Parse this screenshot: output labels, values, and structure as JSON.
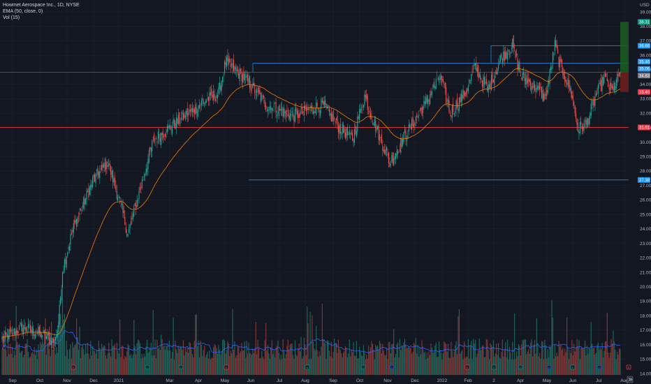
{
  "header": {
    "title": "Howmet Aerospace Inc., 1D, NYSE",
    "ema_label": "EMA (50, close, 0)",
    "vol_label": "Vol (15)"
  },
  "axis": {
    "currency": "USD"
  },
  "colors": {
    "background": "#131722",
    "grid": "#1e222d",
    "up": "#26a69a",
    "down": "#ef5350",
    "ema": "#f57c00",
    "vol_ma": "#2962ff",
    "hline_blue": "#2196f3",
    "hline_red": "#f23645",
    "tag_blue": "#2196f3",
    "tag_red": "#f23645",
    "tag_green": "#089981",
    "tag_gray": "#787b86"
  },
  "chart_data": {
    "type": "candlestick",
    "symbol": "Howmet Aerospace Inc.",
    "interval": "1D",
    "exchange": "NYSE",
    "grid": true,
    "ylim": [
      13.8,
      39.8
    ],
    "y_ticks": [
      14.0,
      15.0,
      16.0,
      17.0,
      18.0,
      19.0,
      20.0,
      21.0,
      22.0,
      23.0,
      24.0,
      25.0,
      26.0,
      27.0,
      28.0,
      29.0,
      30.0,
      31.0,
      32.0,
      33.0,
      34.0,
      35.0,
      36.0,
      37.0,
      38.0,
      39.0
    ],
    "x_ticks": [
      "Sep",
      "Oct",
      "Nov",
      "Dec",
      "2021",
      "Mar",
      "Apr",
      "May",
      "Jun",
      "Jul",
      "Aug",
      "Sep",
      "Oct",
      "Nov",
      "Dec",
      "2022",
      "Feb",
      "2",
      "Apr",
      "May",
      "Jun",
      "Jul",
      "Aug"
    ],
    "anchors": [
      [
        0,
        16.4
      ],
      [
        20,
        17.2
      ],
      [
        40,
        16.7
      ],
      [
        52,
        16.2
      ],
      [
        56,
        17.4
      ],
      [
        60,
        21.2
      ],
      [
        70,
        23.9
      ],
      [
        90,
        27.3
      ],
      [
        105,
        28.6
      ],
      [
        118,
        25.6
      ],
      [
        125,
        23.6
      ],
      [
        150,
        30.1
      ],
      [
        200,
        32.8
      ],
      [
        215,
        33.4
      ],
      [
        222,
        35.5
      ],
      [
        240,
        34.5
      ],
      [
        262,
        32.6
      ],
      [
        290,
        31.8
      ],
      [
        318,
        32.6
      ],
      [
        335,
        31.0
      ],
      [
        348,
        30.2
      ],
      [
        360,
        33.2
      ],
      [
        372,
        30.9
      ],
      [
        385,
        28.6
      ],
      [
        400,
        30.4
      ],
      [
        420,
        32.6
      ],
      [
        435,
        34.6
      ],
      [
        445,
        32.0
      ],
      [
        460,
        33.4
      ],
      [
        470,
        35.2
      ],
      [
        482,
        33.6
      ],
      [
        495,
        35.7
      ],
      [
        507,
        36.7
      ],
      [
        515,
        34.6
      ],
      [
        528,
        33.9
      ],
      [
        540,
        33.1
      ],
      [
        549,
        36.7
      ],
      [
        555,
        35.1
      ],
      [
        565,
        33.6
      ],
      [
        572,
        30.9
      ],
      [
        580,
        31.2
      ],
      [
        590,
        33.2
      ],
      [
        598,
        34.4
      ],
      [
        606,
        33.5
      ],
      [
        614,
        34.8
      ]
    ],
    "ema_period": 50,
    "vol_ma_period": 15,
    "horizontal_levels": [
      {
        "value": 36.66,
        "label": "36.66",
        "color": "blue"
      },
      {
        "value": 35.46,
        "label": "35.46",
        "color": "blue"
      },
      {
        "value": 34.83,
        "label": "34.83",
        "color": "gray"
      },
      {
        "value": 31.01,
        "label": "31.01",
        "color": "red"
      },
      {
        "value": 27.38,
        "label": "27.38",
        "color": "blue"
      }
    ],
    "price_tags": [
      {
        "value": 38.31,
        "label": "38.31",
        "color": "green"
      },
      {
        "value": 36.66,
        "label": "36.66",
        "color": "blue"
      },
      {
        "value": 35.46,
        "label": "35.46",
        "color": "blue"
      },
      {
        "value": 35.06,
        "label": "35.06",
        "color": "blue"
      },
      {
        "value": 34.83,
        "label": "34.83",
        "color": "gray"
      },
      {
        "value": 33.46,
        "label": "33.46",
        "color": "red"
      },
      {
        "value": 31.01,
        "label": "31.01",
        "color": "red"
      },
      {
        "value": 27.38,
        "label": "27.38",
        "color": "blue"
      }
    ],
    "position": {
      "entry": 34.83,
      "target": 38.31,
      "stop": 33.46
    },
    "event_markers": [
      {
        "type": "earnings",
        "label": "E",
        "color": "red"
      },
      {
        "type": "dividend",
        "label": "D",
        "color": "green"
      },
      {
        "type": "dividend",
        "label": "D",
        "color": "green"
      },
      {
        "type": "earnings",
        "label": "E",
        "color": "red"
      },
      {
        "type": "earnings",
        "label": "E",
        "color": "green"
      },
      {
        "type": "dividend",
        "label": "D",
        "color": "green"
      },
      {
        "type": "dividend",
        "label": "D",
        "color": "blue"
      },
      {
        "type": "earnings",
        "label": "E",
        "color": "red"
      },
      {
        "type": "earnings",
        "label": "E",
        "color": "green"
      },
      {
        "type": "dividend",
        "label": "D",
        "color": "green"
      },
      {
        "type": "dividend",
        "label": "D",
        "color": "blue"
      },
      {
        "type": "earnings",
        "label": "E",
        "color": "green"
      },
      {
        "type": "dividend",
        "label": "D",
        "color": "blue"
      },
      {
        "type": "earnings",
        "label": "E",
        "color": "red"
      }
    ]
  }
}
